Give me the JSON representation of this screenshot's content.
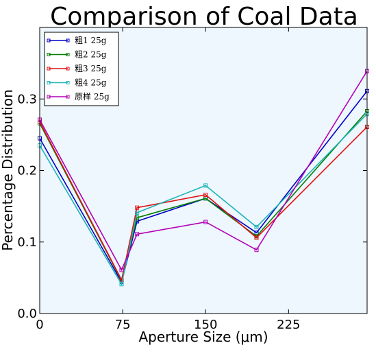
{
  "chart_data": {
    "type": "line",
    "title": "Comparison of Coal Data",
    "xlabel": "Aperture Size (μm)",
    "ylabel": "Percentage Distribution",
    "xlim": [
      0,
      296
    ],
    "ylim": [
      0,
      0.4
    ],
    "xticks": [
      0,
      75,
      150,
      225
    ],
    "xtick_labels": [
      "0",
      "75",
      "150",
      "225"
    ],
    "yticks": [
      0.0,
      0.1,
      0.2,
      0.3
    ],
    "ytick_labels": [
      "0.0",
      "0.1",
      "0.2",
      "0.3"
    ],
    "grid": false,
    "background": "#eef6fe",
    "legend_position": "top-left",
    "marker": "square",
    "x": [
      0,
      74,
      88,
      150,
      196,
      296
    ],
    "series": [
      {
        "name": "粗1 25g",
        "color": "#0000c8",
        "values": [
          0.245,
          0.044,
          0.129,
          0.161,
          0.113,
          0.311
        ]
      },
      {
        "name": "粗2 25g",
        "color": "#008000",
        "values": [
          0.266,
          0.046,
          0.134,
          0.161,
          0.108,
          0.283
        ]
      },
      {
        "name": "粗3 25g",
        "color": "#e01010",
        "values": [
          0.268,
          0.047,
          0.148,
          0.166,
          0.106,
          0.261
        ]
      },
      {
        "name": "粗4 25g",
        "color": "#1eb4b4",
        "values": [
          0.235,
          0.041,
          0.141,
          0.179,
          0.121,
          0.279
        ]
      },
      {
        "name": "原样 25g",
        "color": "#b400b4",
        "values": [
          0.271,
          0.061,
          0.111,
          0.128,
          0.089,
          0.339
        ]
      }
    ]
  }
}
